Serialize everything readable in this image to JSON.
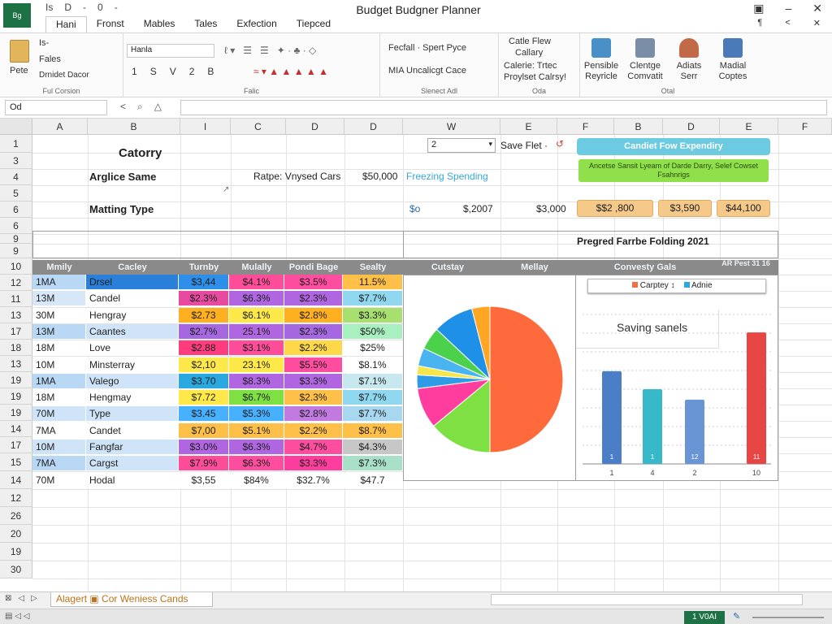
{
  "app": {
    "logo_text": "Bg",
    "title": "Budget Budgner Planner",
    "qat": [
      "Is",
      "D",
      "-",
      "0",
      "-"
    ],
    "window_controls": [
      "▣",
      "–",
      "✕"
    ],
    "window_controls2": [
      "¶",
      "<",
      "✕"
    ],
    "menu_tabs": [
      "Hani",
      "Fronst",
      "Mables",
      "Tales",
      "Exfection",
      "Tiepced"
    ]
  },
  "ribbon": {
    "clipboard": {
      "paste": "Pete",
      "cut": "Is-",
      "copy": "Fales",
      "format": "Drnidet Dacor",
      "label": "Ful Corsion"
    },
    "font": {
      "name": "Hanla",
      "row2": [
        "1",
        "S",
        "V",
        "2",
        "B"
      ],
      "label": "Falic"
    },
    "styles": {
      "item1": "Fecfall · Spert Pyce",
      "item2": "MIA Uncalicgt Cace",
      "label": "Slenect Adl"
    },
    "cells": {
      "line1": "Catle Flew",
      "line2": "Callary",
      "line3": "Calerie: Trtec",
      "line4": "Proylset Calrsy!",
      "label": "Oda"
    },
    "buttons": [
      {
        "label1": "Pensible",
        "label2": "Reyricle",
        "color": "#4a90c8"
      },
      {
        "label1": "Clentge",
        "label2": "Comvatit",
        "color": "#7a8ea8"
      },
      {
        "label1": "Adiats",
        "label2": "Serr",
        "color": "#c06a4a"
      },
      {
        "label1": "Madial",
        "label2": "Coptes",
        "color": "#4a7ab8"
      }
    ],
    "buttons_label": "Otal"
  },
  "formula_bar": {
    "name_box": "Od",
    "icons": [
      "<",
      "⌕",
      "△"
    ]
  },
  "columns": [
    "A",
    "B",
    "I",
    "C",
    "D",
    "D",
    "W",
    "E",
    "F",
    "B",
    "D",
    "E",
    "F"
  ],
  "rows": [
    "1",
    "3",
    "4",
    "5",
    "6",
    "6",
    "9",
    "9",
    "10",
    "12",
    "11",
    "13",
    "17",
    "18",
    "13",
    "19",
    "19",
    "19",
    "14",
    "17",
    "15",
    "14",
    "12",
    "26",
    "20",
    "19",
    "30"
  ],
  "sheet": {
    "catorry": "Catorry",
    "label_r4": "Arglice Same",
    "rate_label": "Ratpe: Vnysed Cars",
    "rate_value": "$50,000",
    "freezing": "Freezing Spending",
    "spin_value": "2",
    "save_label": "Save Flet ·",
    "button1": "Candiet Fow Expendiry",
    "green_box": "Ancetse Sansit Lyeam of Darde Darry, Selef Cowset Fsahnrigs",
    "marking": "Matting Type",
    "so": "$o",
    "v2007": "$,2007",
    "v3000": "$3,000",
    "tags": [
      "$$2 ,800",
      "$3,590",
      "$44,100"
    ],
    "progress_title": "Pregred Farrbe Folding 2021"
  },
  "table": {
    "headers": [
      "Mmily",
      "Cacley",
      "Turnby",
      "Mulally",
      "Pondi Bage",
      "Sealty",
      "Cutstay",
      "Mellay",
      "Convesty Gals",
      "AR Pest 31 16"
    ],
    "rows": [
      [
        "1MA",
        "Drsel",
        "$3,44",
        "$4.1%",
        "$3.5%",
        "11.5%"
      ],
      [
        "13M",
        "Candel",
        "$2.3%",
        "$6.3%",
        "$2.3%",
        "$7.7%"
      ],
      [
        "30M",
        "Hengray",
        "$2.73",
        "$6.1%",
        "$2.8%",
        "$3.3%"
      ],
      [
        "13M",
        "Caantes",
        "$2.7%",
        "25.1%",
        "$2.3%",
        "$50%"
      ],
      [
        "18M",
        "Love",
        "$2.88",
        "$3.1%",
        "$2.2%",
        "$25%"
      ],
      [
        "10M",
        "Minsterray",
        "$2,10",
        "23.1%",
        "$5.5%",
        "$8.1%"
      ],
      [
        "1MA",
        "Valego",
        "$3.70",
        "$8.3%",
        "$3.3%",
        "$7.1%"
      ],
      [
        "18M",
        "Hengmay",
        "$7.72",
        "$6.7%",
        "$2.3%",
        "$7.7%"
      ],
      [
        "70M",
        "Type",
        "$3.45",
        "$5.3%",
        "$2.8%",
        "$7.7%"
      ],
      [
        "7MA",
        "Candet",
        "$7,00",
        "$5.1%",
        "$2.2%",
        "$8.7%"
      ],
      [
        "10M",
        "Fangfar",
        "$3.0%",
        "$6.3%",
        "$4.7%",
        "$4.3%"
      ],
      [
        "7MA",
        "Cargst",
        "$7.9%",
        "$6.3%",
        "$3.3%",
        "$7.3%"
      ],
      [
        "70M",
        "Hodal",
        "$3,55",
        "$84%",
        "$32.7%",
        "$47.7"
      ]
    ]
  },
  "pie": {
    "slices": [
      {
        "value": 50,
        "color": "#ff6a3d"
      },
      {
        "value": 14,
        "color": "#7fe043"
      },
      {
        "value": 9,
        "color": "#ff3d9e"
      },
      {
        "value": 3,
        "color": "#2e9be6"
      },
      {
        "value": 2,
        "color": "#f5e64a"
      },
      {
        "value": 4,
        "color": "#4ab4f0"
      },
      {
        "value": 5,
        "color": "#4bd14b"
      },
      {
        "value": 9,
        "color": "#1e90e8"
      },
      {
        "value": 4,
        "color": "#ffa724"
      }
    ]
  },
  "bar_chart": {
    "legend": [
      "Carptey ↕",
      "Adnie"
    ],
    "legend_colors": [
      "#f07040",
      "#2aa8e0"
    ],
    "title": "Saving sanels",
    "categories": [
      "1",
      "4",
      "2",
      "10"
    ],
    "values": [
      62,
      50,
      43,
      88
    ],
    "colors": [
      "#4a7fc8",
      "#37b9c9",
      "#6a95d4",
      "#e84545"
    ],
    "ylim": [
      0,
      100
    ],
    "labels": [
      "1",
      "1",
      "12",
      "11"
    ]
  },
  "status": {
    "sheet_tab": "Alagert ▣ Cor Weniess Cands",
    "left_icons": [
      "⊠",
      "◁",
      "▷"
    ],
    "ready": "1 V0AI",
    "zoom_icon": "✎"
  }
}
